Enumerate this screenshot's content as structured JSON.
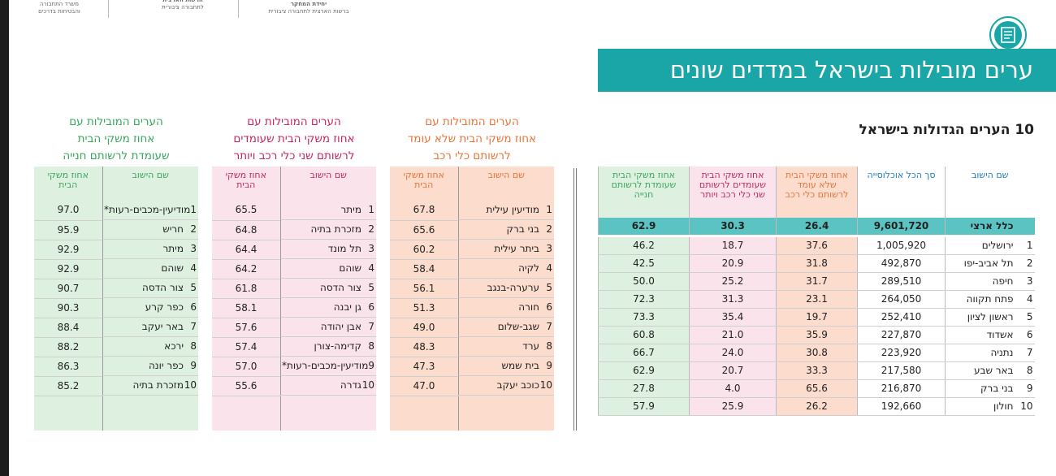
{
  "header": {
    "logos": [
      {
        "lines": [
          "משרד התחבורה",
          "והבטיחות בדרכים"
        ]
      },
      {
        "lines": [
          "הרשות הארצית",
          "לתחבורה ציבורית"
        ]
      },
      {
        "lines": [
          "יחידת המחקר",
          "ברשות הארצית לתחבורה ציבורית"
        ]
      }
    ],
    "title": "ערים מובילות בישראל במדדים שונים"
  },
  "main_table": {
    "title": "10 הערים הגדולות בישראל",
    "columns": [
      "שם הישוב",
      "סך הכל אוכלוסייה",
      "אחוז משקי הבית שלא עומד לרשותם כלי רכב",
      "אחוז משקי הבית שעומדים לרשותם שני כלי רכב ויותר",
      "אחוז משקי הבית שעומדת לרשותם חנייה"
    ],
    "national": {
      "name": "כלל ארצי",
      "population": "9,601,720",
      "no_car": "26.4",
      "two_cars": "30.3",
      "parking": "62.9"
    },
    "rows": [
      {
        "rank": "1",
        "name": "ירושלים",
        "population": "1,005,920",
        "no_car": "37.6",
        "two_cars": "18.7",
        "parking": "46.2"
      },
      {
        "rank": "2",
        "name": "תל אביב-יפו",
        "population": "492,870",
        "no_car": "31.8",
        "two_cars": "20.9",
        "parking": "42.5"
      },
      {
        "rank": "3",
        "name": "חיפה",
        "population": "289,510",
        "no_car": "31.7",
        "two_cars": "25.2",
        "parking": "50.0"
      },
      {
        "rank": "4",
        "name": "פתח תקווה",
        "population": "264,050",
        "no_car": "23.1",
        "two_cars": "31.3",
        "parking": "72.3"
      },
      {
        "rank": "5",
        "name": "ראשון לציון",
        "population": "252,410",
        "no_car": "19.7",
        "two_cars": "35.4",
        "parking": "73.3"
      },
      {
        "rank": "6",
        "name": "אשדוד",
        "population": "227,870",
        "no_car": "35.9",
        "two_cars": "21.0",
        "parking": "60.8"
      },
      {
        "rank": "7",
        "name": "נתניה",
        "population": "223,920",
        "no_car": "30.8",
        "two_cars": "24.0",
        "parking": "66.7"
      },
      {
        "rank": "8",
        "name": "באר שבע",
        "population": "217,580",
        "no_car": "33.3",
        "two_cars": "20.7",
        "parking": "62.9"
      },
      {
        "rank": "9",
        "name": "בני ברק",
        "population": "216,870",
        "no_car": "65.6",
        "two_cars": "4.0",
        "parking": "27.8"
      },
      {
        "rank": "10",
        "name": "חולון",
        "population": "192,660",
        "no_car": "26.2",
        "two_cars": "25.9",
        "parking": "57.9"
      }
    ]
  },
  "side_tables": [
    {
      "title": [
        "הערים המובילות עם",
        "אחוז משקי הבית שלא עומד",
        "לרשותם כלי רכב"
      ],
      "columns": [
        "שם הישוב",
        "אחוז משקי הבית"
      ],
      "rows": [
        {
          "rank": "1",
          "name": "מודיעין עילית",
          "value": "67.8"
        },
        {
          "rank": "2",
          "name": "בני ברק",
          "value": "65.6"
        },
        {
          "rank": "3",
          "name": "ביתר עילית",
          "value": "60.2"
        },
        {
          "rank": "4",
          "name": "לקיה",
          "value": "58.4"
        },
        {
          "rank": "5",
          "name": "ערערה-בנגב",
          "value": "56.1"
        },
        {
          "rank": "6",
          "name": "חורה",
          "value": "51.3"
        },
        {
          "rank": "7",
          "name": "שגב-שלום",
          "value": "49.0"
        },
        {
          "rank": "8",
          "name": "ערד",
          "value": "48.3"
        },
        {
          "rank": "9",
          "name": "בית שמש",
          "value": "47.3"
        },
        {
          "rank": "10",
          "name": "כוכב יעקב",
          "value": "47.0"
        }
      ]
    },
    {
      "title": [
        "הערים המובילות עם",
        "אחוז משקי הבית שעומדים",
        "לרשותם שני כלי רכב ויותר"
      ],
      "columns": [
        "שם הישוב",
        "אחוז משקי הבית"
      ],
      "rows": [
        {
          "rank": "1",
          "name": "מיתר",
          "value": "65.5"
        },
        {
          "rank": "2",
          "name": "מזכרת בתיה",
          "value": "64.8"
        },
        {
          "rank": "3",
          "name": "תל מונד",
          "value": "64.4"
        },
        {
          "rank": "4",
          "name": "שוהם",
          "value": "64.2"
        },
        {
          "rank": "5",
          "name": "צור הדסה",
          "value": "61.8"
        },
        {
          "rank": "6",
          "name": "גן יבנה",
          "value": "58.1"
        },
        {
          "rank": "7",
          "name": "אבן יהודה",
          "value": "57.6"
        },
        {
          "rank": "8",
          "name": "קדימה-צורן",
          "value": "57.4"
        },
        {
          "rank": "9",
          "name": "מודיעין-מכבים-רעות*",
          "value": "57.0"
        },
        {
          "rank": "10",
          "name": "גדרה",
          "value": "55.6"
        }
      ]
    },
    {
      "title": [
        "הערים המובילות עם",
        "אחוז משקי הבית",
        "שעומדת לרשותם חנייה"
      ],
      "columns": [
        "שם הישוב",
        "אחוז משקי הבית"
      ],
      "rows": [
        {
          "rank": "1",
          "name": "מודיעין-מכבים-רעות*",
          "value": "97.0"
        },
        {
          "rank": "2",
          "name": "חריש",
          "value": "95.9"
        },
        {
          "rank": "3",
          "name": "מיתר",
          "value": "92.9"
        },
        {
          "rank": "4",
          "name": "שוהם",
          "value": "92.9"
        },
        {
          "rank": "5",
          "name": "צור הדסה",
          "value": "90.7"
        },
        {
          "rank": "6",
          "name": "כפר קרע",
          "value": "90.3"
        },
        {
          "rank": "7",
          "name": "באר יעקב",
          "value": "88.4"
        },
        {
          "rank": "8",
          "name": "ירכא",
          "value": "88.2"
        },
        {
          "rank": "9",
          "name": "כפר יונה",
          "value": "86.3"
        },
        {
          "rank": "10",
          "name": "מזכרת בתיה",
          "value": "85.2"
        }
      ]
    }
  ]
}
